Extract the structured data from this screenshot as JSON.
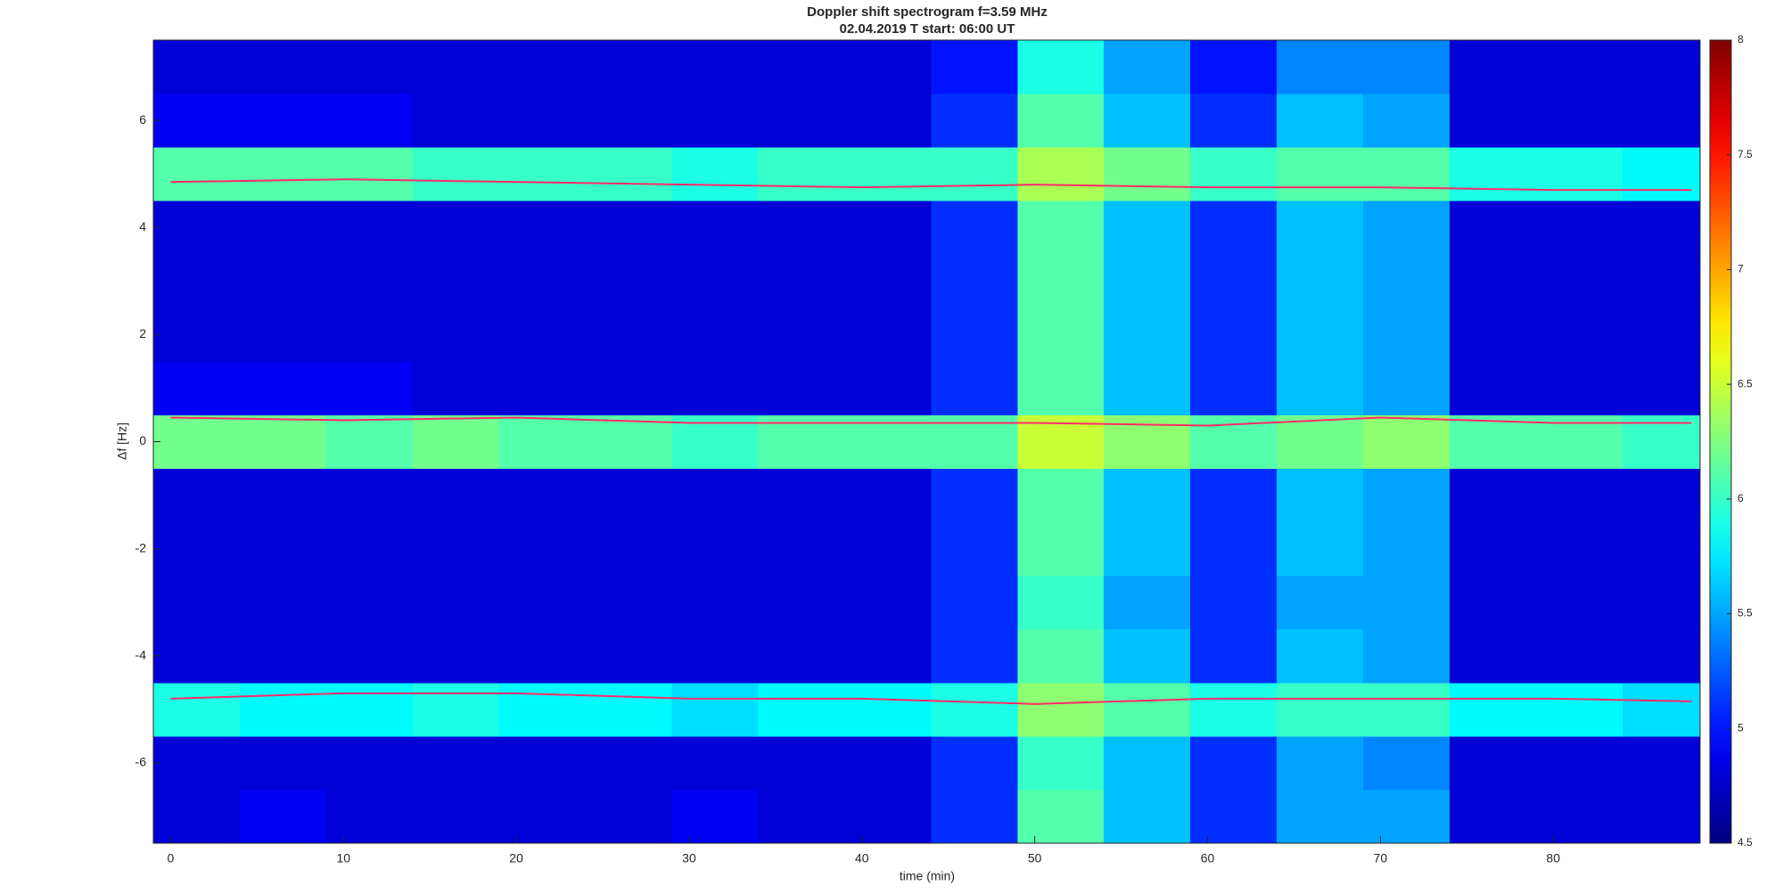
{
  "chart_data": {
    "type": "heatmap",
    "title": "Doppler shift spectrogram f=3.59 MHz",
    "subtitle": "02.04.2019    T start: 06:00 UT",
    "x_label": "time (min)",
    "y_label": "Δf [Hz]",
    "x_bins": [
      -1,
      4,
      9,
      14,
      19,
      24,
      29,
      34,
      39,
      44,
      49,
      54,
      59,
      64,
      69,
      74,
      79,
      84,
      88.5
    ],
    "y_bins": [
      -7.5,
      -6.5,
      -5.5,
      -4.5,
      -3.5,
      -2.5,
      -1.5,
      -0.5,
      0.5,
      1.5,
      2.5,
      3.5,
      4.5,
      5.5,
      6.5,
      7.5
    ],
    "z": [
      [
        4.8,
        4.9,
        4.8,
        4.8,
        4.8,
        4.8,
        4.9,
        4.8,
        4.8,
        5.1,
        6.1,
        5.6,
        5.1,
        5.5,
        5.5,
        4.8,
        4.8,
        4.8
      ],
      [
        4.8,
        4.8,
        4.8,
        4.8,
        4.8,
        4.8,
        4.8,
        4.8,
        4.8,
        5.1,
        6.0,
        5.6,
        5.1,
        5.5,
        5.4,
        4.8,
        4.8,
        4.8
      ],
      [
        5.9,
        5.8,
        5.8,
        5.9,
        5.8,
        5.8,
        5.7,
        5.8,
        5.8,
        5.9,
        6.3,
        6.1,
        5.9,
        6.0,
        6.0,
        5.8,
        5.8,
        5.7
      ],
      [
        4.8,
        4.8,
        4.8,
        4.8,
        4.8,
        4.8,
        4.8,
        4.8,
        4.8,
        5.1,
        6.1,
        5.6,
        5.1,
        5.6,
        5.5,
        4.8,
        4.8,
        4.8
      ],
      [
        4.8,
        4.8,
        4.8,
        4.8,
        4.8,
        4.8,
        4.8,
        4.8,
        4.8,
        5.1,
        6.0,
        5.5,
        5.1,
        5.5,
        5.5,
        4.8,
        4.8,
        4.8
      ],
      [
        4.8,
        4.8,
        4.8,
        4.8,
        4.8,
        4.8,
        4.8,
        4.8,
        4.8,
        5.1,
        6.1,
        5.6,
        5.1,
        5.6,
        5.5,
        4.8,
        4.8,
        4.8
      ],
      [
        4.8,
        4.8,
        4.8,
        4.8,
        4.8,
        4.8,
        4.8,
        4.8,
        4.8,
        5.1,
        6.1,
        5.6,
        5.1,
        5.6,
        5.5,
        4.8,
        4.8,
        4.8
      ],
      [
        6.2,
        6.2,
        6.1,
        6.2,
        6.1,
        6.1,
        6.0,
        6.1,
        6.1,
        6.1,
        6.5,
        6.3,
        6.1,
        6.2,
        6.3,
        6.1,
        6.1,
        6.0
      ],
      [
        4.9,
        4.9,
        4.9,
        4.8,
        4.8,
        4.8,
        4.8,
        4.8,
        4.8,
        5.1,
        6.1,
        5.6,
        5.1,
        5.6,
        5.5,
        4.8,
        4.8,
        4.8
      ],
      [
        4.8,
        4.8,
        4.8,
        4.8,
        4.8,
        4.8,
        4.8,
        4.8,
        4.8,
        5.1,
        6.1,
        5.6,
        5.1,
        5.6,
        5.5,
        4.8,
        4.8,
        4.8
      ],
      [
        4.8,
        4.8,
        4.8,
        4.8,
        4.8,
        4.8,
        4.8,
        4.8,
        4.8,
        5.1,
        6.1,
        5.6,
        5.1,
        5.6,
        5.5,
        4.8,
        4.8,
        4.8
      ],
      [
        4.8,
        4.8,
        4.8,
        4.8,
        4.8,
        4.8,
        4.8,
        4.8,
        4.8,
        5.1,
        6.1,
        5.6,
        5.1,
        5.6,
        5.5,
        4.8,
        4.8,
        4.8
      ],
      [
        6.1,
        6.1,
        6.1,
        6.0,
        6.0,
        6.0,
        5.9,
        6.0,
        6.0,
        6.0,
        6.4,
        6.2,
        6.0,
        6.1,
        6.1,
        5.9,
        5.9,
        5.8
      ],
      [
        4.9,
        4.9,
        4.9,
        4.8,
        4.8,
        4.8,
        4.8,
        4.8,
        4.8,
        5.1,
        6.1,
        5.6,
        5.1,
        5.6,
        5.5,
        4.8,
        4.8,
        4.8
      ],
      [
        4.8,
        4.8,
        4.8,
        4.8,
        4.8,
        4.8,
        4.8,
        4.8,
        4.8,
        5.0,
        5.9,
        5.5,
        5.0,
        5.4,
        5.4,
        4.8,
        4.8,
        4.8
      ]
    ],
    "series": [
      {
        "color": "#ff2a6a",
        "x": [
          0,
          10,
          20,
          30,
          40,
          50,
          60,
          70,
          80,
          88
        ],
        "values": [
          4.85,
          4.9,
          4.85,
          4.8,
          4.75,
          4.8,
          4.75,
          4.75,
          4.7,
          4.7
        ]
      },
      {
        "color": "#ff2a6a",
        "x": [
          0,
          10,
          20,
          30,
          40,
          50,
          60,
          70,
          80,
          88
        ],
        "values": [
          0.45,
          0.4,
          0.45,
          0.35,
          0.35,
          0.35,
          0.3,
          0.45,
          0.35,
          0.35
        ]
      },
      {
        "color": "#ff2a6a",
        "x": [
          0,
          10,
          20,
          30,
          40,
          50,
          60,
          70,
          80,
          88
        ],
        "values": [
          -4.8,
          -4.7,
          -4.7,
          -4.8,
          -4.8,
          -4.9,
          -4.8,
          -4.8,
          -4.8,
          -4.85
        ]
      }
    ],
    "xlim": [
      -1,
      88.5
    ],
    "xticks": [
      0,
      10,
      20,
      30,
      40,
      50,
      60,
      70,
      80
    ],
    "ylim": [
      -7.5,
      7.5
    ],
    "yticks": [
      -6,
      -4,
      -2,
      0,
      2,
      4,
      6
    ],
    "clim": [
      4.5,
      8
    ],
    "cticks": [
      4.5,
      5,
      5.5,
      6,
      6.5,
      7,
      7.5,
      8
    ],
    "colormap": "jet"
  }
}
